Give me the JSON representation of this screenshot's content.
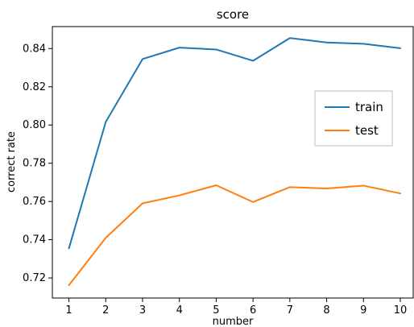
{
  "chart_data": {
    "type": "line",
    "title": "score",
    "xlabel": "number",
    "ylabel": "correct rate",
    "x": [
      1,
      2,
      3,
      4,
      5,
      6,
      7,
      8,
      9,
      10
    ],
    "xlim": [
      0.55,
      10.35
    ],
    "ylim": [
      0.7095,
      0.8515
    ],
    "yticks": [
      0.72,
      0.74,
      0.76,
      0.78,
      0.8,
      0.82,
      0.84
    ],
    "ytick_labels": [
      "0.72",
      "0.74",
      "0.76",
      "0.78",
      "0.80",
      "0.82",
      "0.84"
    ],
    "xticks": [
      1,
      2,
      3,
      4,
      5,
      6,
      7,
      8,
      9,
      10
    ],
    "xtick_labels": [
      "1",
      "2",
      "3",
      "4",
      "5",
      "6",
      "7",
      "8",
      "9",
      "10"
    ],
    "grid": false,
    "legend_position": "center-right",
    "series": [
      {
        "name": "train",
        "color": "#1f77b4",
        "values": [
          0.7355,
          0.8016,
          0.8345,
          0.8405,
          0.8395,
          0.8336,
          0.8455,
          0.8432,
          0.8425,
          0.8402
        ]
      },
      {
        "name": "test",
        "color": "#ff7f0e",
        "values": [
          0.7162,
          0.741,
          0.759,
          0.7632,
          0.7685,
          0.7597,
          0.7675,
          0.7668,
          0.7683,
          0.7642
        ]
      }
    ]
  }
}
